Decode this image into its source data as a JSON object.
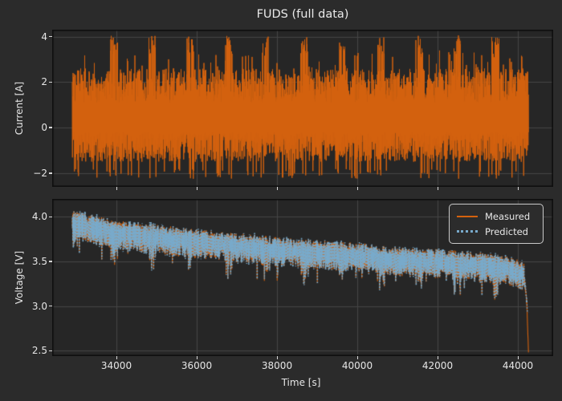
{
  "figure": {
    "title": "FUDS (full data)",
    "background_color": "#2b2b2b",
    "axes_background_color": "#262626",
    "grid_color": "#454545",
    "spine_color": "#0e0e0e",
    "text_color": "#e8e8e8",
    "tick_color": "#d8d8d8"
  },
  "legend": {
    "items": [
      {
        "label": "Measured",
        "color": "#d4620e",
        "line_style": "solid"
      },
      {
        "label": "Predicted",
        "color": "#78aacb",
        "line_style": "dotted"
      }
    ]
  },
  "chart_data": [
    {
      "type": "line",
      "title": "FUDS (full data)",
      "ylabel": "Current [A]",
      "xlabel": "",
      "xlim": [
        32400,
        44880
      ],
      "ylim": [
        -2.6,
        4.3
      ],
      "xticks": [
        34000,
        36000,
        38000,
        40000,
        42000,
        44000
      ],
      "xtick_labels": [],
      "yticks": [
        4,
        2,
        0,
        -2
      ],
      "ytick_labels": [
        "4",
        "2",
        "0",
        "−2"
      ],
      "grid": true,
      "series": [
        {
          "name": "current",
          "color": "#d4620e",
          "style": "solid",
          "t_start": 32900,
          "t_end": 44260,
          "description": "High-frequency FUDS drive-cycle current: dense oscillation filling roughly -1.5 A to +2.6 A, clusters of charge pulses reaching a clipped maximum near +4.05 A about every 950 s, discharge pulses down to about -2.25 A",
          "base_high_range": [
            1.1,
            2.6
          ],
          "burst_high_range": [
            3.2,
            4.07
          ],
          "base_low_range": [
            -0.2,
            -1.5
          ],
          "pulse_low_range": [
            -1.8,
            -2.25
          ],
          "burst_period_s": 950,
          "burst_duty": 0.2,
          "burst_start_t": 33350
        }
      ]
    },
    {
      "type": "line",
      "title": "",
      "ylabel": "Voltage [V]",
      "xlabel": "Time [s]",
      "xlim": [
        32400,
        44880
      ],
      "ylim": [
        2.44,
        4.2
      ],
      "xticks": [
        34000,
        36000,
        38000,
        40000,
        42000,
        44000
      ],
      "xtick_labels": [
        "34000",
        "36000",
        "38000",
        "40000",
        "42000",
        "44000"
      ],
      "yticks": [
        4.0,
        3.5,
        3.0,
        2.5
      ],
      "ytick_labels": [
        "4.0",
        "3.5",
        "3.0",
        "2.5"
      ],
      "grid": true,
      "legend_position": "upper right",
      "series": [
        {
          "name": "Measured",
          "color": "#d4620e",
          "style": "solid",
          "t_start": 32900,
          "t_end": 44260,
          "description": "Battery terminal voltage declining from about 3.95 V to 3.4 V with a noisy band of roughly 0.3 V, periodic dips of about 0.25 V, and a sharp final discharge drop to 2.52 V at the end of the test",
          "trend_t": [
            32900,
            33200,
            34000,
            35000,
            36000,
            37000,
            38000,
            39000,
            40000,
            41000,
            42000,
            43000,
            43800,
            44150,
            44220,
            44260
          ],
          "trend_v": [
            3.93,
            3.9,
            3.82,
            3.77,
            3.72,
            3.68,
            3.63,
            3.6,
            3.57,
            3.52,
            3.5,
            3.46,
            3.42,
            3.36,
            3.05,
            2.52
          ],
          "osc_up_range": [
            0.04,
            0.14
          ],
          "osc_down_range": [
            0.05,
            0.19
          ],
          "dip_extra": 0.17
        },
        {
          "name": "Predicted",
          "color": "#78aacb",
          "style": "dotted",
          "follows": "Measured",
          "noise": 0.05,
          "end_clamp_min": 2.93,
          "description": "Model-predicted voltage tracking the measured signal closely; does not follow the final drop below about 2.93 V"
        }
      ]
    }
  ]
}
